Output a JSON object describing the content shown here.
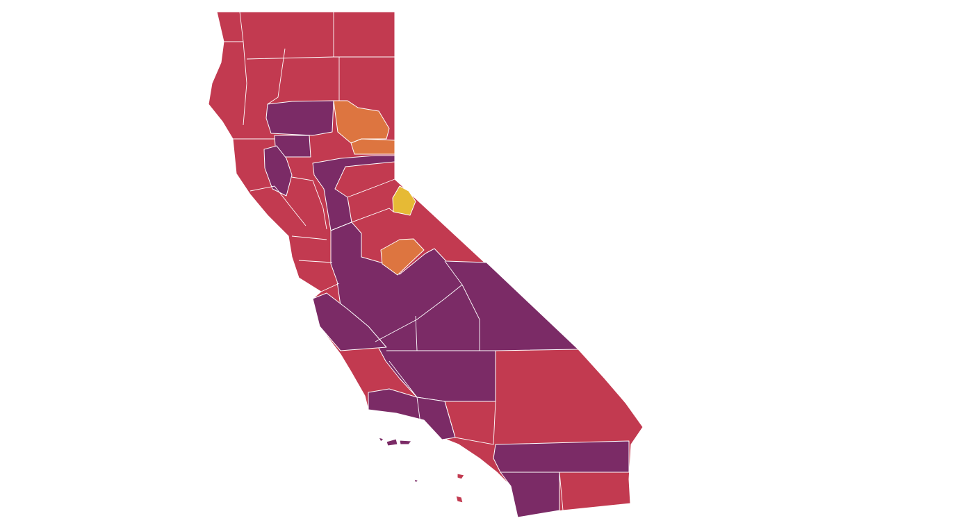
{
  "map": {
    "fills": [
      "#c23a50",
      "#7b2b66",
      "#dd7540",
      "#e6ba35"
    ],
    "border": "#ffffff"
  }
}
